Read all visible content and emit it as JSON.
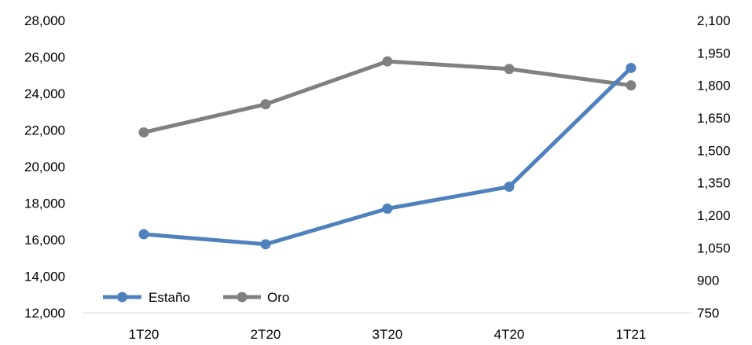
{
  "chart_data": {
    "type": "line",
    "categories": [
      "1T20",
      "2T20",
      "3T20",
      "4T20",
      "1T21"
    ],
    "title": "",
    "xlabel": "",
    "ylabel": "",
    "y_left": {
      "min": 12000,
      "max": 28000,
      "ticks": [
        12000,
        14000,
        16000,
        18000,
        20000,
        22000,
        24000,
        26000,
        28000
      ],
      "tick_labels": [
        "12,000",
        "14,000",
        "16,000",
        "18,000",
        "20,000",
        "22,000",
        "24,000",
        "26,000",
        "28,000"
      ]
    },
    "y_right": {
      "min": 750,
      "max": 2100,
      "ticks": [
        750,
        900,
        1050,
        1200,
        1350,
        1500,
        1650,
        1800,
        1950,
        2100
      ],
      "tick_labels": [
        "750",
        "900",
        "1,050",
        "1,200",
        "1,350",
        "1,500",
        "1,650",
        "1,800",
        "1,950",
        "2,100"
      ]
    },
    "grid": false,
    "legend_position": "bottom-left",
    "series": [
      {
        "name": "Estaño",
        "axis": "left",
        "color": "#4f81bd",
        "values": [
          16300,
          15750,
          17700,
          18900,
          25400
        ]
      },
      {
        "name": "Oro",
        "axis": "right",
        "color": "#808080",
        "values": [
          1583,
          1713,
          1911,
          1876,
          1800
        ]
      }
    ]
  }
}
